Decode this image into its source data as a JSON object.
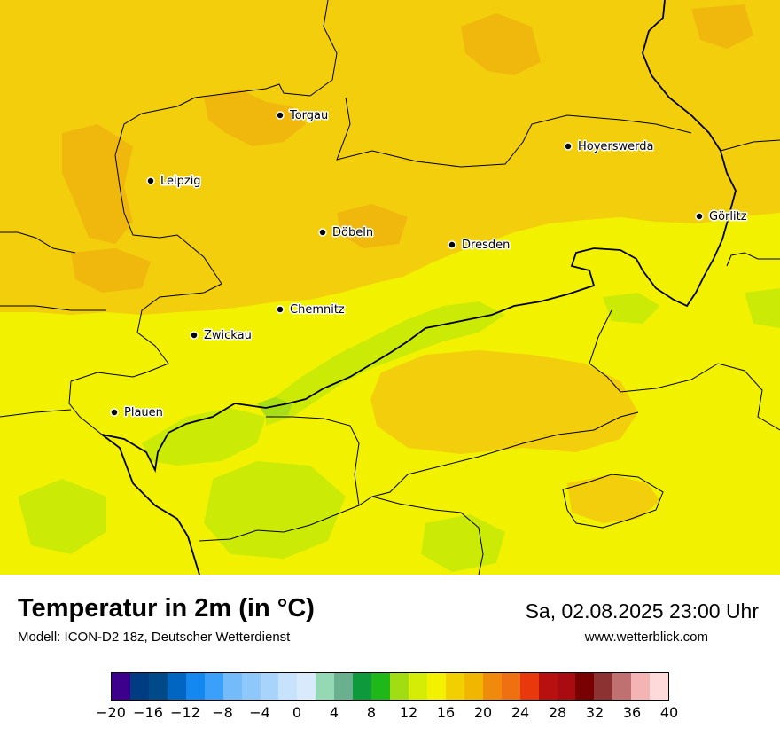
{
  "title": "Temperatur in 2m (in °C)",
  "subtitle": "Modell: ICON-D2 18z, Deutscher Wetterdienst",
  "datetime": "Sa, 02.08.2025 23:00 Uhr",
  "website": "www.wetterblick.com",
  "map": {
    "region": "Sachsen",
    "cities": [
      {
        "name": "Torgau"
      },
      {
        "name": "Hoyerswerda"
      },
      {
        "name": "Leipzig"
      },
      {
        "name": "Görlitz"
      },
      {
        "name": "Döbeln"
      },
      {
        "name": "Dresden"
      },
      {
        "name": "Chemnitz"
      },
      {
        "name": "Zwickau"
      },
      {
        "name": "Plauen"
      }
    ],
    "colors": {
      "orange_zone": "#f2ce0c",
      "orange_warm": "#f0b80c",
      "yellow_zone": "#f2f200",
      "lime_zone": "#cbeb07",
      "green_zone": "#a7de16"
    }
  },
  "legend": {
    "tick_labels": [
      "−20",
      "−16",
      "−12",
      "−8",
      "−4",
      "0",
      "4",
      "8",
      "12",
      "16",
      "20",
      "24",
      "28",
      "32",
      "36",
      "40"
    ],
    "min": -20,
    "max": 40,
    "step": 2,
    "colors": [
      "#3c008c",
      "#003c82",
      "#004a8a",
      "#0066c2",
      "#1488f0",
      "#3aa0fa",
      "#74bbf9",
      "#8ec8fa",
      "#a8d4fb",
      "#c7e2fc",
      "#d8eafc",
      "#95d8b6",
      "#6ab08e",
      "#0e9a3c",
      "#20b818",
      "#a2dc12",
      "#d4ec06",
      "#f2f200",
      "#f2d000",
      "#f1b700",
      "#ef8a0c",
      "#ef7010",
      "#e8380c",
      "#b80f0f",
      "#a80c10",
      "#780000",
      "#8c3232",
      "#c07070",
      "#f4b4b4",
      "#ffdada"
    ]
  }
}
